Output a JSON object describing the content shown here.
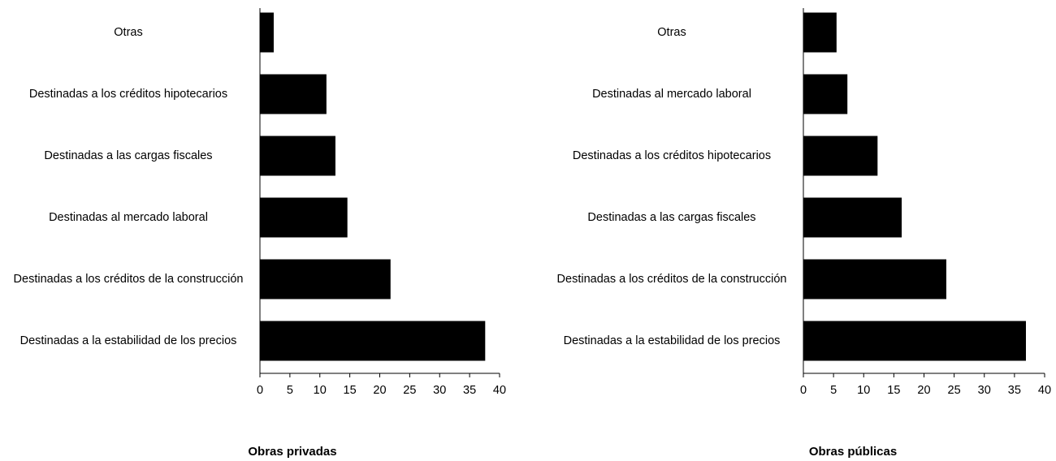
{
  "chart_data": [
    {
      "type": "barh",
      "title": "Obras privadas",
      "color": "#000000",
      "categories": [
        "Otras",
        "Destinadas a los créditos hipotecarios",
        "Destinadas a las cargas fiscales",
        "Destinadas al mercado laboral",
        "Destinadas a los créditos de la construcción",
        "Destinadas a la estabilidad de los precios"
      ],
      "values": [
        2.3,
        11.1,
        12.6,
        14.6,
        21.8,
        37.6
      ],
      "xlim": [
        0,
        40
      ],
      "xticks": [
        0,
        5,
        10,
        15,
        20,
        25,
        30,
        35,
        40
      ]
    },
    {
      "type": "barh",
      "title": "Obras públicas",
      "color": "#000000",
      "categories": [
        "Otras",
        "Destinadas al mercado laboral",
        "Destinadas a los créditos hipotecarios",
        "Destinadas a las cargas fiscales",
        "Destinadas a los créditos de la construcción",
        "Destinadas a la estabilidad de los precios"
      ],
      "values": [
        5.5,
        7.3,
        12.3,
        16.3,
        23.7,
        36.9
      ],
      "xlim": [
        0,
        40
      ],
      "xticks": [
        0,
        5,
        10,
        15,
        20,
        25,
        30,
        35,
        40
      ]
    }
  ]
}
